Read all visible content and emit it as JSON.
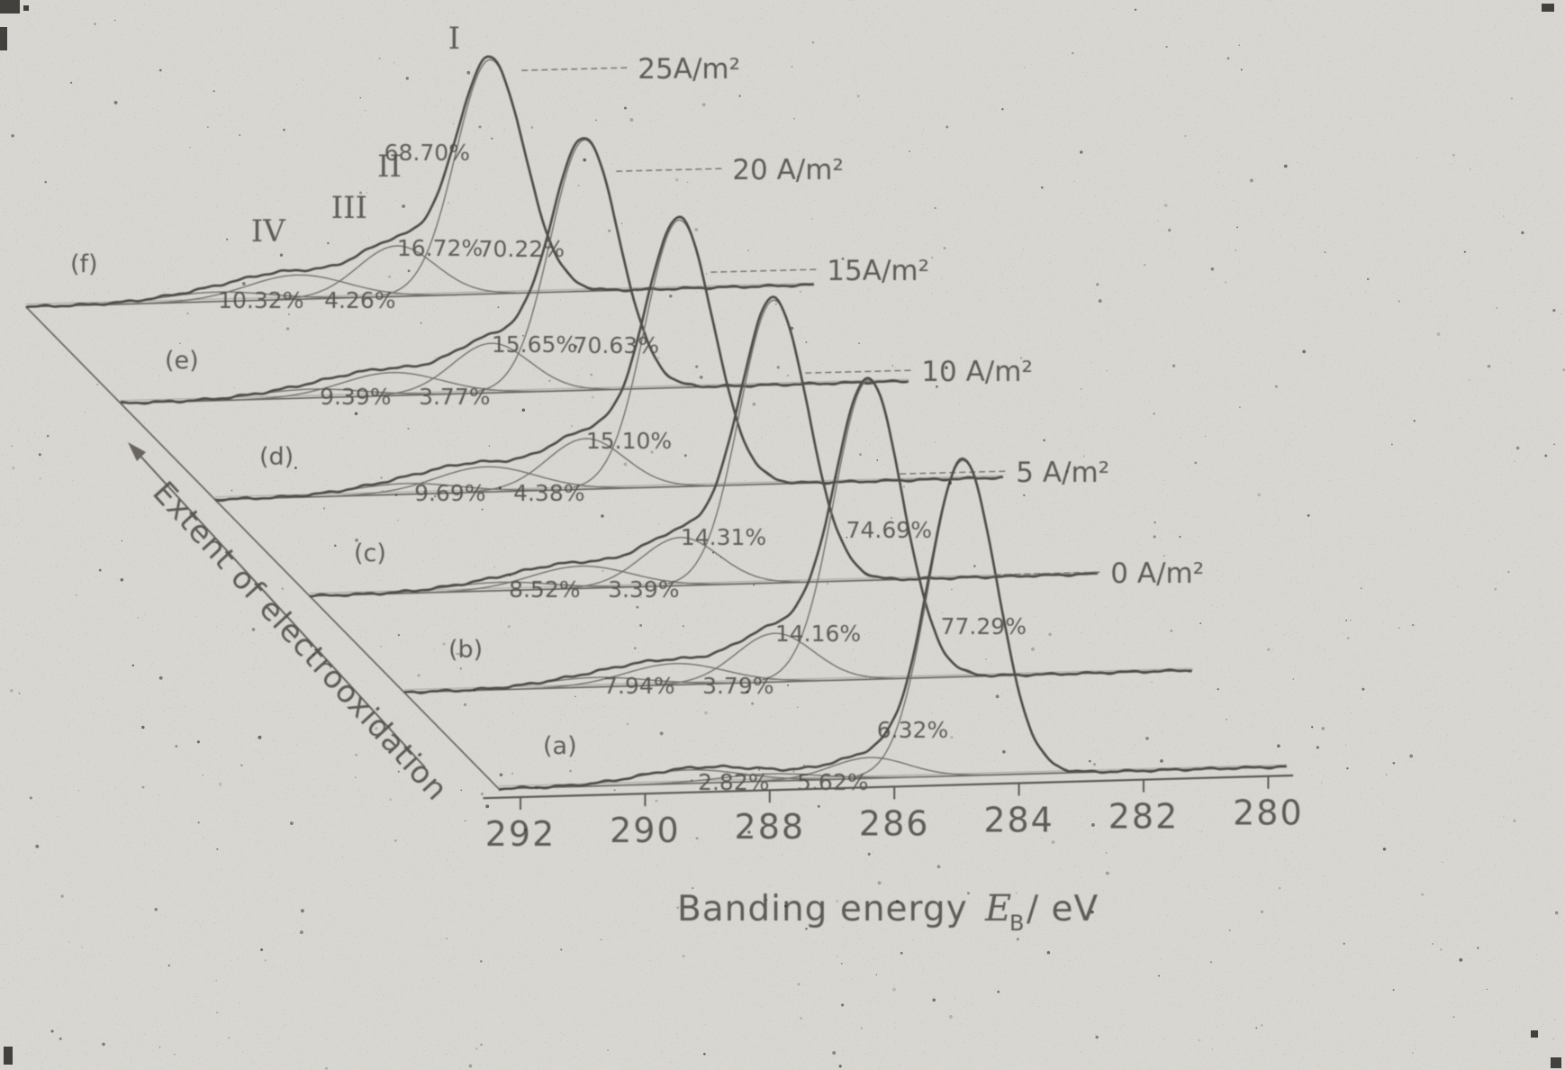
{
  "figure": {
    "description": "Scanned XPS C1s spectra waterfall figure",
    "background_color": "#d7d6d1",
    "ink_color": "#4e4c46"
  },
  "chart_data": {
    "type": "line",
    "variant": "stacked-offset-spectra-waterfall",
    "x_axis": {
      "label_text": "Banding energy",
      "label_symbol": "E",
      "label_symbol_sub": "B",
      "label_unit": "/ eV",
      "tick_labels": [
        "292",
        "290",
        "288",
        "286",
        "284",
        "282",
        "280"
      ],
      "tick_values": [
        292,
        290,
        288,
        286,
        284,
        282,
        280
      ],
      "direction": "decreasing-to-right"
    },
    "depth_axis": {
      "label": "Extent of electrooxidation",
      "arrow_direction": "up-left"
    },
    "component_peak_labels": [
      "I",
      "II",
      "III",
      "IV"
    ],
    "component_peak_energies_eV": [
      284.9,
      286.4,
      288.0,
      289.3
    ],
    "series": [
      {
        "letter": "(f)",
        "current_density": "25A/m²",
        "peak_percentages": {
          "I": "68.70%",
          "II": "16.72%",
          "III": "10.32%",
          "IV": "4.26%"
        }
      },
      {
        "letter": "(e)",
        "current_density": "20 A/m²",
        "peak_percentages": {
          "I": "70.22%",
          "II": "15.65%",
          "III": "9.39%",
          "IV": "3.77%"
        }
      },
      {
        "letter": "(d)",
        "current_density": "15A/m²",
        "peak_percentages": {
          "I": "70.63%",
          "II": "15.10%",
          "III": "9.69%",
          "IV": "4.38%"
        }
      },
      {
        "letter": "(c)",
        "current_density": "10 A/m²",
        "peak_percentages": {
          "I": "74.69%",
          "II": "14.31%",
          "III": "8.52%",
          "IV": "3.39%"
        }
      },
      {
        "letter": "(b)",
        "current_density": "5 A/m²",
        "peak_percentages": {
          "I": "77.29%",
          "II": "14.16%",
          "III": "7.94%",
          "IV": "3.79%"
        }
      },
      {
        "letter": "(a)",
        "current_density": "0 A/m²",
        "peak_percentages": {
          "I": "",
          "II": "6.32%",
          "III": "2.82%",
          "IV": "5.62%"
        }
      }
    ]
  }
}
